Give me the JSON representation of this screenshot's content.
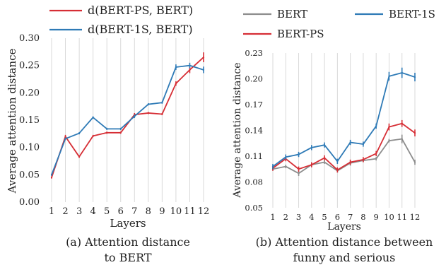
{
  "chart_data": [
    {
      "type": "line",
      "xlabel": "Layers",
      "ylabel": "Average attention distance",
      "caption": "(a) Attention distance to BERT",
      "caption_lines": [
        "(a) Attention distance",
        "to BERT"
      ],
      "x": [
        1,
        2,
        3,
        4,
        5,
        6,
        7,
        8,
        9,
        10,
        11,
        12
      ],
      "ylim": [
        0.0,
        0.3
      ],
      "yticks": [
        0.0,
        0.05,
        0.1,
        0.15,
        0.2,
        0.25,
        0.3
      ],
      "ytick_labels": [
        "0.00",
        "0.05",
        "0.10",
        "0.15",
        "0.20",
        "0.25",
        "0.30"
      ],
      "grid": "vertical",
      "legend_position": "top",
      "series": [
        {
          "name": "d(BERT-PS, BERT)",
          "color": "#d62e35",
          "values": [
            0.045,
            0.12,
            0.083,
            0.121,
            0.127,
            0.127,
            0.16,
            0.163,
            0.161,
            0.217,
            0.242,
            0.265
          ],
          "error": [
            0.002,
            0.003,
            0.002,
            0.002,
            0.002,
            0.002,
            0.003,
            0.002,
            0.002,
            0.004,
            0.006,
            0.009
          ]
        },
        {
          "name": "d(BERT-1S, BERT)",
          "color": "#2e7ab6",
          "values": [
            0.05,
            0.116,
            0.126,
            0.155,
            0.134,
            0.134,
            0.157,
            0.179,
            0.182,
            0.247,
            0.25,
            0.242
          ],
          "error": [
            0.002,
            0.002,
            0.002,
            0.002,
            0.002,
            0.002,
            0.003,
            0.002,
            0.002,
            0.005,
            0.005,
            0.006
          ]
        }
      ]
    },
    {
      "type": "line",
      "xlabel": "Layers",
      "ylabel": "Average attention distance",
      "caption": "(b) Attention distance between funny and serious",
      "caption_lines": [
        "(b) Attention distance between",
        "funny and serious"
      ],
      "x": [
        1,
        2,
        3,
        4,
        5,
        6,
        7,
        8,
        9,
        10,
        11,
        12
      ],
      "ylim": [
        0.05,
        0.23
      ],
      "yticks": [
        0.05,
        0.08,
        0.11,
        0.14,
        0.17,
        0.2,
        0.23
      ],
      "ytick_labels": [
        "0.05",
        "0.08",
        "0.11",
        "0.14",
        "0.17",
        "0.20",
        "0.23"
      ],
      "grid": "vertical",
      "legend_position": "top",
      "series": [
        {
          "name": "BERT",
          "color": "#8c8c8c",
          "values": [
            0.095,
            0.098,
            0.09,
            0.1,
            0.103,
            0.093,
            0.102,
            0.105,
            0.107,
            0.128,
            0.13,
            0.103
          ],
          "error": [
            0.002,
            0.002,
            0.003,
            0.002,
            0.002,
            0.002,
            0.003,
            0.002,
            0.002,
            0.002,
            0.005,
            0.003
          ]
        },
        {
          "name": "BERT-PS",
          "color": "#d62e35",
          "values": [
            0.096,
            0.107,
            0.095,
            0.1,
            0.108,
            0.094,
            0.103,
            0.106,
            0.113,
            0.144,
            0.148,
            0.137
          ],
          "error": [
            0.003,
            0.003,
            0.003,
            0.003,
            0.003,
            0.003,
            0.003,
            0.003,
            0.003,
            0.004,
            0.004,
            0.004
          ]
        },
        {
          "name": "BERT-1S",
          "color": "#2e7ab6",
          "values": [
            0.098,
            0.109,
            0.112,
            0.12,
            0.123,
            0.104,
            0.126,
            0.124,
            0.145,
            0.203,
            0.207,
            0.202
          ],
          "error": [
            0.003,
            0.003,
            0.003,
            0.003,
            0.003,
            0.003,
            0.003,
            0.003,
            0.003,
            0.005,
            0.006,
            0.005
          ]
        }
      ]
    }
  ]
}
